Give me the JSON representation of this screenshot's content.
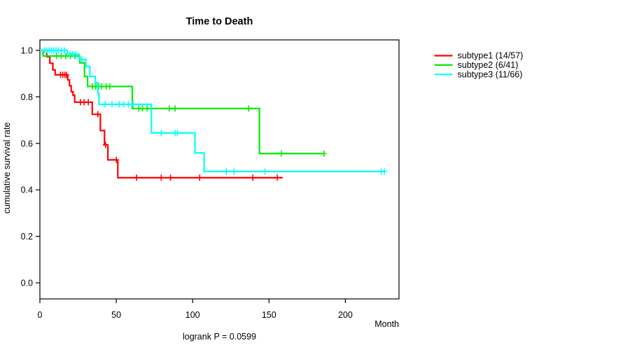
{
  "title": "Time to Death",
  "footnote": "logrank P = 0.0599",
  "x_axis": {
    "label": "Month",
    "ticks": [
      "0",
      "50",
      "100",
      "150",
      "200"
    ],
    "range": [
      0,
      235
    ]
  },
  "y_axis": {
    "label": "cumulative survival rate",
    "ticks": [
      "0.0",
      "0.2",
      "0.4",
      "0.6",
      "0.8",
      "1.0"
    ],
    "range": [
      0,
      1
    ]
  },
  "legend": {
    "position": "right-outside",
    "items": [
      {
        "label": "subtype1 (14/57)",
        "color": "#ff0000"
      },
      {
        "label": "subtype2 (6/41)",
        "color": "#00ee00"
      },
      {
        "label": "subtype3 (11/66)",
        "color": "#00ffff"
      }
    ]
  },
  "chart_data": {
    "type": "line",
    "subtype": "kaplan_meier_step",
    "title": "Time to Death",
    "xlabel": "Month",
    "ylabel": "cumulative survival rate",
    "xlim": [
      0,
      235
    ],
    "ylim": [
      0,
      1
    ],
    "grid": false,
    "annotation": "logrank P = 0.0599",
    "series": [
      {
        "name": "subtype1 (14/57)",
        "color": "#ff0000",
        "events_total": "14/57",
        "start": [
          0,
          1.0
        ],
        "steps": [
          [
            4.5,
            0.973
          ],
          [
            6.5,
            0.945
          ],
          [
            8.5,
            0.916
          ],
          [
            10,
            0.895
          ],
          [
            18.2,
            0.873
          ],
          [
            19.4,
            0.848
          ],
          [
            20.5,
            0.822
          ],
          [
            21.7,
            0.807
          ],
          [
            22.8,
            0.777
          ],
          [
            34.3,
            0.725
          ],
          [
            39.6,
            0.655
          ],
          [
            42.3,
            0.594
          ],
          [
            44.5,
            0.529
          ],
          [
            51,
            0.452
          ]
        ],
        "censor_times": [
          13.5,
          15,
          16.3,
          17.4,
          26.6,
          28.9,
          31.7,
          38,
          43,
          50,
          63.3,
          79.4,
          85.5,
          104.6,
          139.4,
          155.4
        ],
        "end_time": 159
      },
      {
        "name": "subtype2 (6/41)",
        "color": "#00ee00",
        "events_total": "6/41",
        "start": [
          0,
          1.0
        ],
        "steps": [
          [
            2,
            0.976
          ],
          [
            26.1,
            0.946
          ],
          [
            29.2,
            0.888
          ],
          [
            31.2,
            0.845
          ],
          [
            60.5,
            0.75
          ],
          [
            143.7,
            0.556
          ]
        ],
        "censor_times": [
          11,
          14,
          17,
          20,
          23,
          34.3,
          36.6,
          38.5,
          40.4,
          43.4,
          45.7,
          64.8,
          67.1,
          70.2,
          84.7,
          88.5,
          136.7,
          158.1,
          186
        ],
        "end_time": 186.4
      },
      {
        "name": "subtype3 (11/66)",
        "color": "#00ffff",
        "events_total": "11/66",
        "start": [
          0,
          1.0
        ],
        "steps": [
          [
            18,
            0.984
          ],
          [
            25.8,
            0.961
          ],
          [
            30.1,
            0.931
          ],
          [
            32.7,
            0.888
          ],
          [
            36.3,
            0.861
          ],
          [
            38,
            0.815
          ],
          [
            38.7,
            0.768
          ],
          [
            73,
            0.645
          ],
          [
            101.5,
            0.559
          ],
          [
            107.5,
            0.479
          ]
        ],
        "censor_times": [
          3,
          4.5,
          6,
          7.5,
          9,
          10.5,
          12,
          14,
          16,
          19.5,
          21.5,
          23.5,
          27.4,
          42.7,
          47.2,
          51.8,
          54.9,
          58,
          61,
          79.4,
          88.5,
          90,
          122,
          127,
          147.4,
          223.5,
          225.5
        ],
        "end_time": 226
      }
    ]
  }
}
